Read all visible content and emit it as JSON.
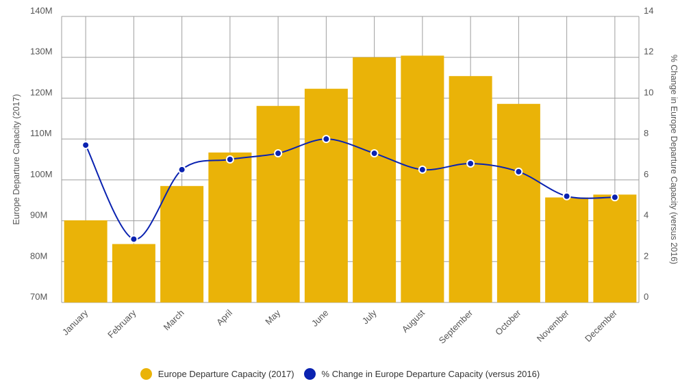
{
  "chart_data": {
    "type": "bar+line",
    "categories": [
      "January",
      "February",
      "March",
      "April",
      "May",
      "June",
      "July",
      "August",
      "September",
      "October",
      "November",
      "December"
    ],
    "series": [
      {
        "name": "Europe Departure Capacity (2017)",
        "type": "bar",
        "axis": "left",
        "color": "#EAB308",
        "values": [
          90.1,
          84.3,
          98.5,
          106.7,
          118.1,
          122.3,
          130.0,
          130.4,
          125.4,
          118.6,
          95.7,
          96.4
        ]
      },
      {
        "name": "% Change in Europe Departure Capacity (versus 2016)",
        "type": "line",
        "axis": "right",
        "color": "#0A22B0",
        "values": [
          7.7,
          3.1,
          6.5,
          7.0,
          7.3,
          8.0,
          7.3,
          6.5,
          6.8,
          6.4,
          5.2,
          5.15
        ]
      }
    ],
    "y_left": {
      "label": "Europe Departure Capacity (2017)",
      "range": [
        70,
        140
      ],
      "ticks": [
        70,
        80,
        90,
        100,
        110,
        120,
        130,
        140
      ],
      "tick_labels": [
        "70M",
        "80M",
        "90M",
        "100M",
        "110M",
        "120M",
        "130M",
        "140M"
      ]
    },
    "y_right": {
      "label": "% Change in Europe Departure Capacity (versus 2016)",
      "range": [
        0,
        14
      ],
      "ticks": [
        0,
        2,
        4,
        6,
        8,
        10,
        12,
        14
      ],
      "tick_labels": [
        "0",
        "2",
        "4",
        "6",
        "8",
        "10",
        "12",
        "14"
      ]
    },
    "grid": true,
    "legend_position": "bottom",
    "gridline_color": "#9E9E9E"
  }
}
